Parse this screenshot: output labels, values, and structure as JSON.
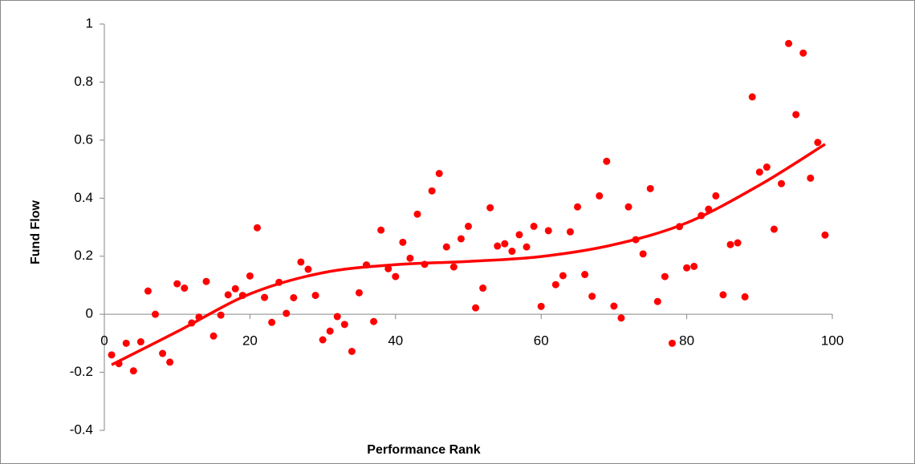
{
  "chart_data": {
    "type": "scatter",
    "x_label": "Performance Rank",
    "y_label": "Fund Flow",
    "xlim": [
      0,
      100
    ],
    "xticks": [
      0,
      20,
      40,
      60,
      80,
      100
    ],
    "ylim": [
      -0.4,
      1
    ],
    "yticks": [
      -0.4,
      -0.2,
      0,
      0.2,
      0.4,
      0.6,
      0.8,
      1
    ],
    "color": "#ff0000",
    "x": [
      1,
      2,
      3,
      4,
      5,
      6,
      7,
      8,
      9,
      10,
      11,
      12,
      13,
      14,
      15,
      16,
      17,
      18,
      19,
      20,
      21,
      22,
      23,
      24,
      25,
      26,
      27,
      28,
      29,
      30,
      31,
      32,
      33,
      34,
      35,
      36,
      37,
      38,
      39,
      40,
      41,
      42,
      43,
      44,
      45,
      46,
      47,
      48,
      49,
      50,
      51,
      52,
      53,
      54,
      55,
      56,
      57,
      58,
      59,
      60,
      61,
      62,
      63,
      64,
      65,
      66,
      67,
      68,
      69,
      70,
      71,
      72,
      73,
      74,
      75,
      76,
      77,
      78,
      79,
      80,
      81,
      82,
      83,
      84,
      85,
      86,
      87,
      88,
      89,
      90,
      91,
      92,
      93,
      94,
      95,
      96,
      97,
      98,
      99
    ],
    "values": [
      -0.14,
      -0.17,
      -0.1,
      -0.195,
      -0.095,
      0.08,
      0,
      -0.135,
      -0.165,
      0.105,
      0.09,
      -0.03,
      -0.01,
      0.113,
      -0.075,
      -0.003,
      0.067,
      0.088,
      0.065,
      0.132,
      0.298,
      0.058,
      -0.028,
      0.11,
      0.003,
      0.057,
      0.18,
      0.155,
      0.065,
      -0.088,
      -0.058,
      -0.008,
      -0.035,
      -0.128,
      0.074,
      0.17,
      -0.025,
      0.29,
      0.157,
      0.13,
      0.248,
      0.193,
      0.345,
      0.172,
      0.425,
      0.485,
      0.232,
      0.163,
      0.26,
      0.303,
      0.022,
      0.09,
      0.367,
      0.235,
      0.243,
      0.217,
      0.274,
      0.232,
      0.303,
      0.027,
      0.288,
      0.102,
      0.133,
      0.284,
      0.37,
      0.137,
      0.062,
      0.408,
      0.527,
      0.028,
      -0.013,
      0.37,
      0.257,
      0.208,
      0.433,
      0.044,
      0.13,
      -0.1,
      0.302,
      0.16,
      0.165,
      0.34,
      0.362,
      0.408,
      0.067,
      0.24,
      0.246,
      0.06,
      0.749,
      0.49,
      0.507,
      0.293,
      0.45,
      0.933,
      0.688,
      0.9,
      0.469,
      0.592,
      0.273
    ],
    "trendline": {
      "color": "#ff0000",
      "x": [
        1,
        10,
        20,
        30,
        40,
        50,
        60,
        70,
        80,
        90,
        99
      ],
      "values": [
        -0.174,
        -0.06,
        0.07,
        0.143,
        0.171,
        0.182,
        0.199,
        0.24,
        0.315,
        0.445,
        0.586
      ]
    }
  }
}
